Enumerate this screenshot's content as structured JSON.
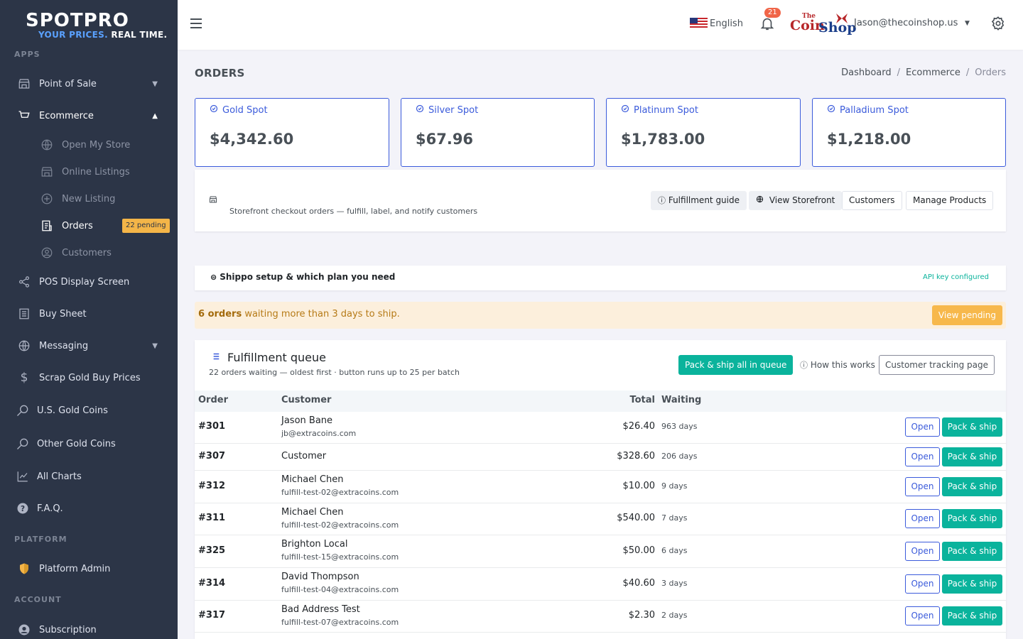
{
  "brand": {
    "logo_main": "SPOTPRO",
    "logo_sub_a": "YOUR PRICES.",
    "logo_sub_b": "REAL TIME."
  },
  "sidebar": {
    "section_apps": "APPS",
    "section_platform": "PLATFORM",
    "section_account": "ACCOUNT",
    "items": [
      {
        "label": "Point of Sale",
        "icon": "store-icon"
      },
      {
        "label": "Ecommerce",
        "icon": "cart-icon"
      },
      {
        "label": "POS Display Screen",
        "icon": "share-icon"
      },
      {
        "label": "Buy Sheet",
        "icon": "list-icon"
      },
      {
        "label": "Messaging",
        "icon": "globe-icon"
      },
      {
        "label": "Scrap Gold Buy Prices",
        "icon": "dollar-icon"
      },
      {
        "label": "U.S. Gold Coins",
        "icon": "search-icon"
      },
      {
        "label": "Other Gold Coins",
        "icon": "search-icon"
      },
      {
        "label": "All Charts",
        "icon": "chart-icon"
      },
      {
        "label": "F.A.Q.",
        "icon": "help-icon"
      },
      {
        "label": "Platform Admin",
        "icon": "shield-icon"
      },
      {
        "label": "Subscription",
        "icon": "user-icon"
      }
    ],
    "ecommerce_sub": [
      {
        "label": "Open My Store",
        "icon": "globe-icon"
      },
      {
        "label": "Online Listings",
        "icon": "store-icon"
      },
      {
        "label": "New Listing",
        "icon": "plus-circle-icon"
      },
      {
        "label": "Orders",
        "icon": "orders-icon"
      },
      {
        "label": "Customers",
        "icon": "user-circle-icon"
      }
    ],
    "orders_badge": "22 pending"
  },
  "topbar": {
    "language": "English",
    "notification_count": "21",
    "shop_logo_the": "The",
    "shop_logo_coin": "Coin",
    "shop_logo_shop": "Shop",
    "user_email": "Jason@thecoinshop.us"
  },
  "page": {
    "title": "ORDERS",
    "breadcrumb": [
      "Dashboard",
      "Ecommerce",
      "Orders"
    ]
  },
  "spots": [
    {
      "name": "Gold Spot",
      "price": "$4,342.60"
    },
    {
      "name": "Silver Spot",
      "price": "$67.96"
    },
    {
      "name": "Platinum Spot",
      "price": "$1,783.00"
    },
    {
      "name": "Palladium Spot",
      "price": "$1,218.00"
    }
  ],
  "storefront": {
    "description": "Storefront checkout orders — fulfill, label, and notify customers",
    "buttons": {
      "guide": "Fulfillment guide",
      "view_storefront": "View Storefront",
      "customers": "Customers",
      "manage_products": "Manage Products"
    }
  },
  "shippo": {
    "title": "Shippo setup & which plan you need",
    "status": "API key configured"
  },
  "warning": {
    "count": "6 orders",
    "text": "waiting more than 3 days to ship.",
    "button": "View pending"
  },
  "queue": {
    "title": "Fulfillment queue",
    "subtitle": "22 orders waiting — oldest first · button runs up to 25 per batch",
    "ship_all": "Pack & ship all in queue",
    "how": "How this works",
    "tracking": "Customer tracking page",
    "columns": {
      "order": "Order",
      "customer": "Customer",
      "total": "Total",
      "waiting": "Waiting"
    },
    "open_label": "Open",
    "ship_label": "Pack & ship",
    "rows": [
      {
        "order": "#301",
        "name": "Jason Bane",
        "email": "jb@extracoins.com",
        "total": "$26.40",
        "waiting": "963 days"
      },
      {
        "order": "#307",
        "name": "Customer",
        "email": "",
        "total": "$328.60",
        "waiting": "206 days"
      },
      {
        "order": "#312",
        "name": "Michael Chen",
        "email": "fulfill-test-02@extracoins.com",
        "total": "$10.00",
        "waiting": "9 days"
      },
      {
        "order": "#311",
        "name": "Michael Chen",
        "email": "fulfill-test-02@extracoins.com",
        "total": "$540.00",
        "waiting": "7 days"
      },
      {
        "order": "#325",
        "name": "Brighton Local",
        "email": "fulfill-test-15@extracoins.com",
        "total": "$50.00",
        "waiting": "6 days"
      },
      {
        "order": "#314",
        "name": "David Thompson",
        "email": "fulfill-test-04@extracoins.com",
        "total": "$40.60",
        "waiting": "3 days"
      },
      {
        "order": "#317",
        "name": "Bad Address Test",
        "email": "fulfill-test-07@extracoins.com",
        "total": "$2.30",
        "waiting": "2 days"
      }
    ]
  },
  "colors": {
    "sidebar_bg": "#2c3547",
    "primary": "#3b5bdb",
    "success": "#0ab39c",
    "warning": "#f7b84b",
    "badge": "#f4b548"
  }
}
